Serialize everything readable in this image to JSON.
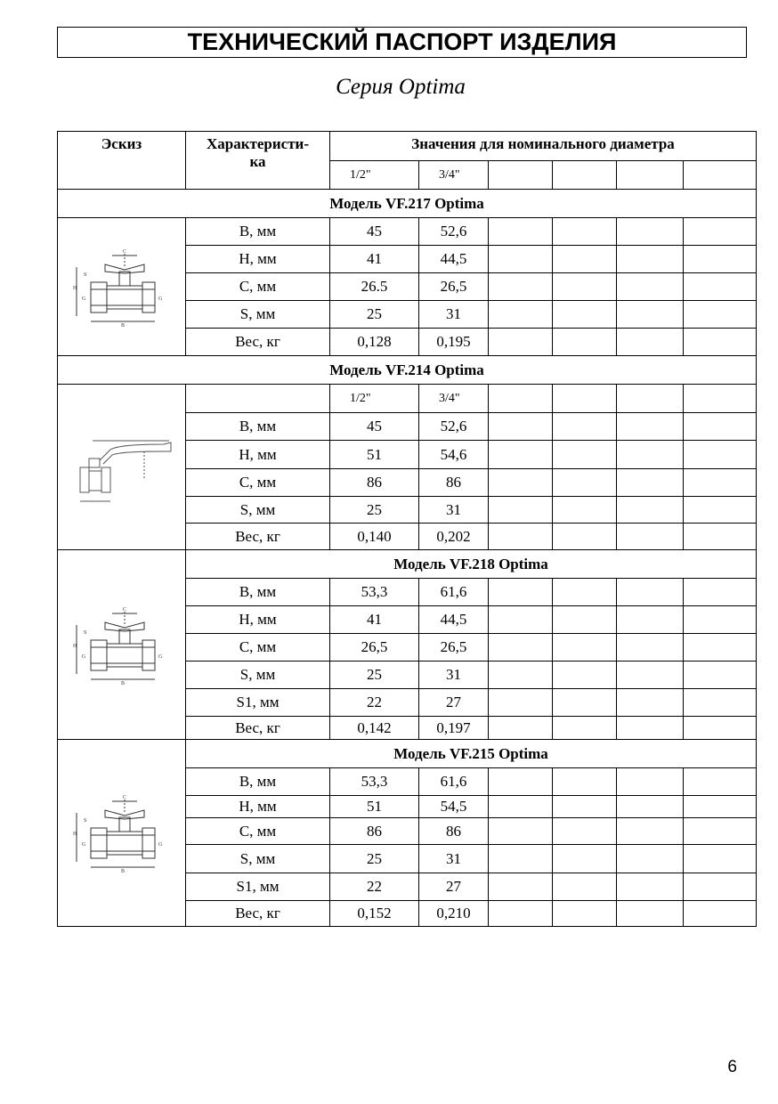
{
  "title": "ТЕХНИЧЕСКИЙ ПАСПОРТ ИЗДЕЛИЯ",
  "series": "Серия Optima",
  "header": {
    "sketch": "Эскиз",
    "characteristic": "Характеристи-\nка",
    "values": "Значения для номинального диаметра",
    "sizes": [
      "1/2\"",
      "3/4\"",
      "",
      "",
      "",
      ""
    ]
  },
  "models": [
    {
      "name": "Модель VF.217 Optima",
      "sketch_icon": "butterfly-valve-drawing",
      "rows": [
        [
          "В, мм",
          "45",
          "52,6"
        ],
        [
          "Н, мм",
          "41",
          "44,5"
        ],
        [
          "С, мм",
          "26.5",
          "26,5"
        ],
        [
          "S, мм",
          "25",
          "31"
        ],
        [
          "Вес, кг",
          "0,128",
          "0,195"
        ]
      ]
    },
    {
      "name": "Модель VF.214 Optima",
      "sketch_icon": "lever-valve-drawing",
      "sizes": [
        "1/2\"",
        "3/4\""
      ],
      "rows": [
        [
          "В, мм",
          "45",
          "52,6"
        ],
        [
          "Н, мм",
          "51",
          "54,6"
        ],
        [
          "С, мм",
          "86",
          "86"
        ],
        [
          "S, мм",
          "25",
          "31"
        ],
        [
          "Вес, кг",
          "0,140",
          "0,202"
        ]
      ]
    },
    {
      "name": "Модель VF.218 Optima",
      "sketch_icon": "butterfly-valve-drawing",
      "rows": [
        [
          "В, мм",
          "53,3",
          "61,6"
        ],
        [
          "Н, мм",
          "41",
          "44,5"
        ],
        [
          "С, мм",
          "26,5",
          "26,5"
        ],
        [
          "S, мм",
          "25",
          "31"
        ],
        [
          "S1, мм",
          "22",
          "27"
        ],
        [
          "Вес, кг",
          "0,142",
          "0,197"
        ]
      ]
    },
    {
      "name": "Модель VF.215 Optima",
      "sketch_icon": "butterfly-valve-drawing",
      "rows": [
        [
          "В, мм",
          "53,3",
          "61,6"
        ],
        [
          "Н, мм",
          "51",
          "54,5"
        ],
        [
          "С, мм",
          "86",
          "86"
        ],
        [
          "S, мм",
          "25",
          "31"
        ],
        [
          "S1, мм",
          "22",
          "27"
        ],
        [
          "Вес, кг",
          "0,152",
          "0,210"
        ]
      ]
    }
  ],
  "page_number": "6"
}
